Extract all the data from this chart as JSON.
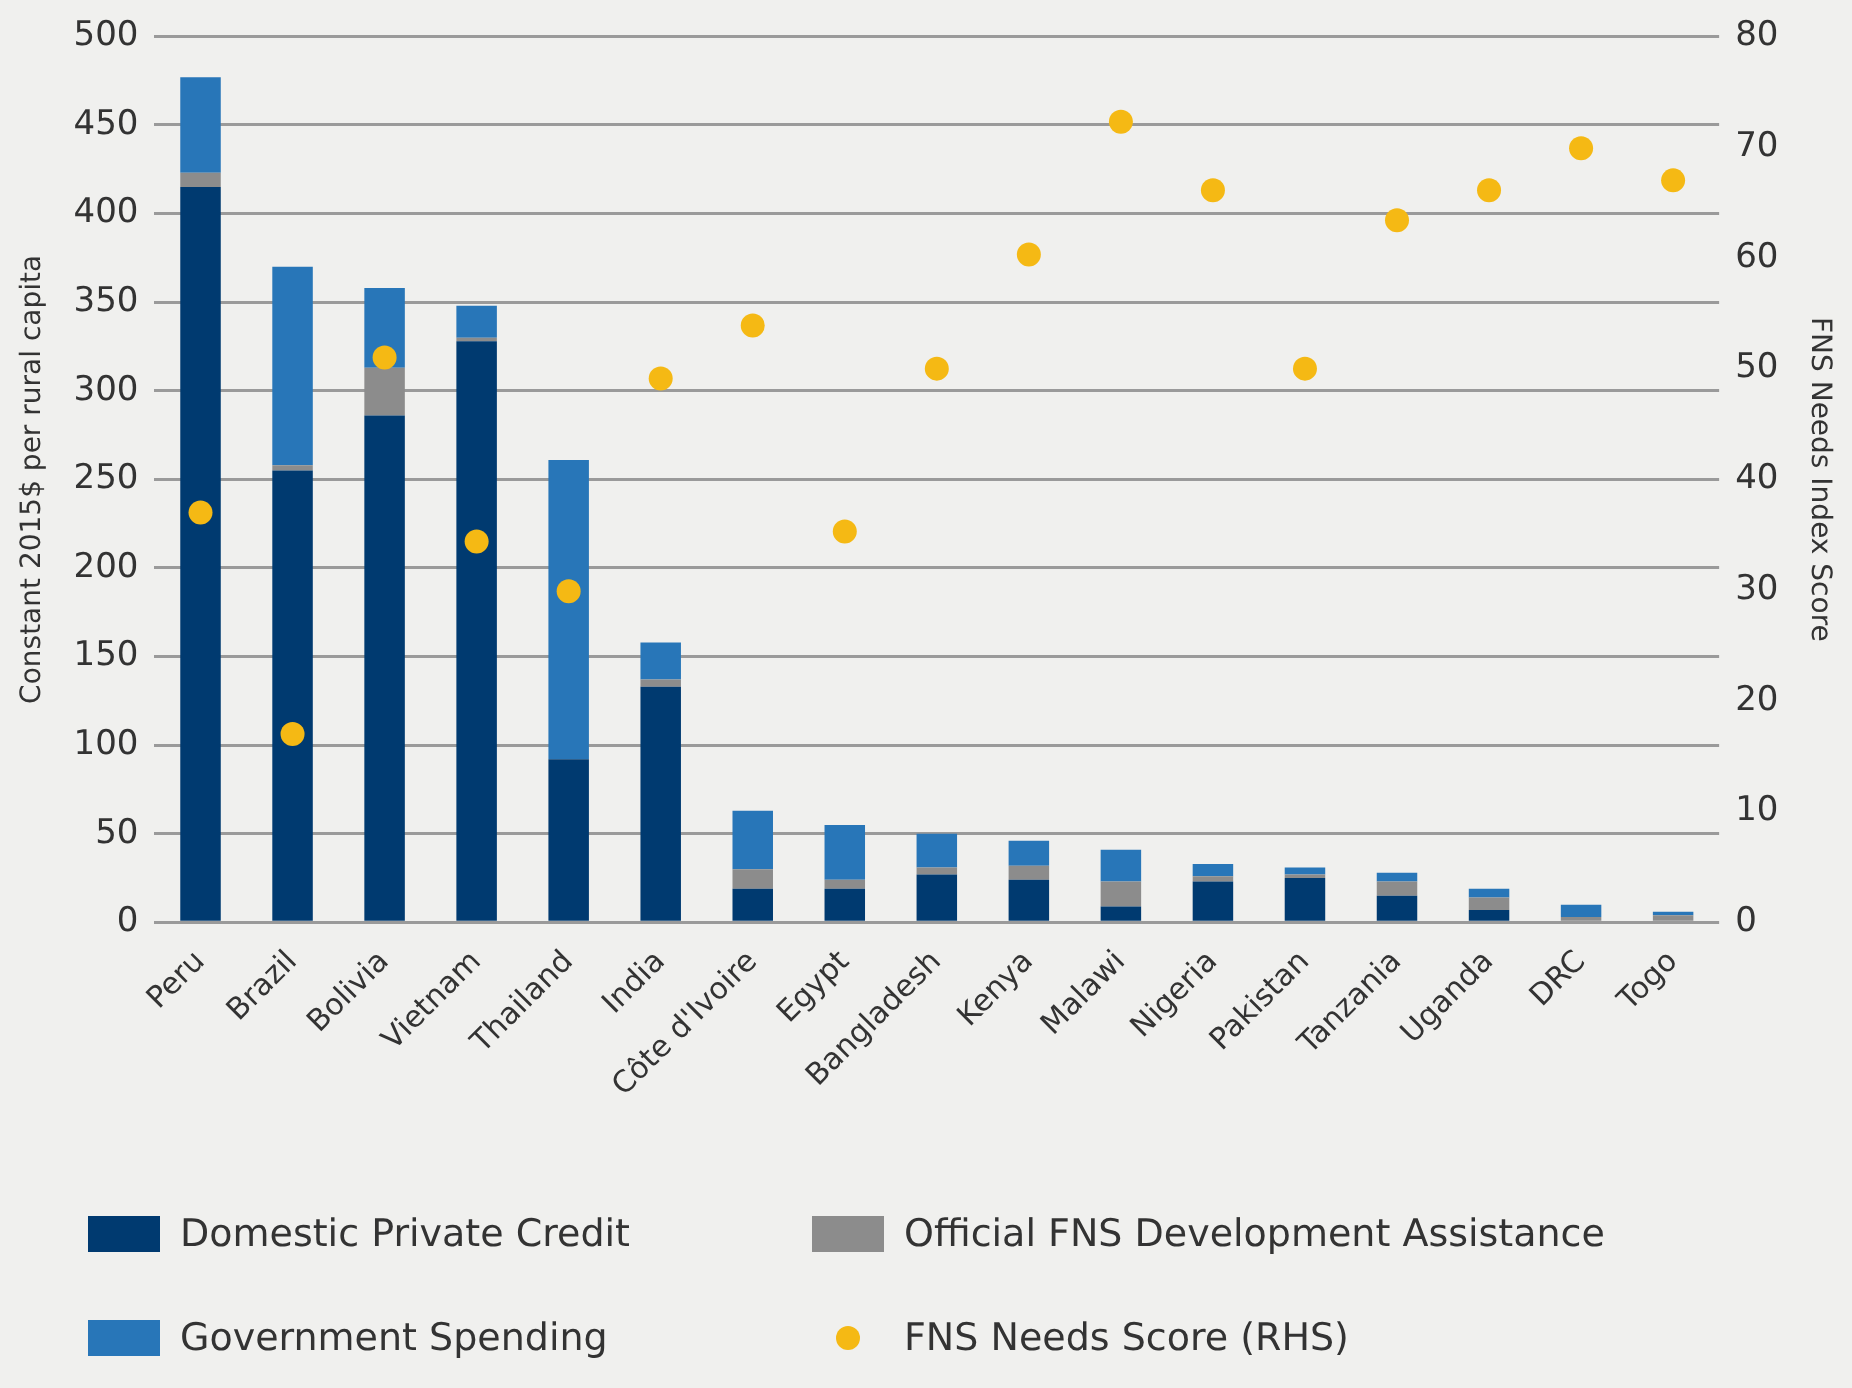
{
  "chart_data": {
    "type": "bar",
    "stacked": true,
    "ylabel": "Constant 2015$ per rural capita",
    "y2label": "FNS Needs Index Score",
    "categories": [
      "Peru",
      "Brazil",
      "Bolivia",
      "Vietnam",
      "Thailand",
      "India",
      "Côte d'Ivoire",
      "Egypt",
      "Bangladesh",
      "Kenya",
      "Malawi",
      "Nigeria",
      "Pakistan",
      "Tanzania",
      "Uganda",
      "DRC",
      "Togo"
    ],
    "series": [
      {
        "name": "Domestic Private Credit",
        "color": "#003a70",
        "values": [
          415,
          255,
          286,
          328,
          92,
          133,
          19,
          19,
          27,
          24,
          9,
          23,
          25,
          15,
          7,
          0,
          0
        ]
      },
      {
        "name": "Official FNS Development Assistance",
        "color": "#8c8c8c",
        "values": [
          8,
          3,
          27,
          2,
          0,
          4,
          11,
          5,
          4,
          8,
          14,
          3,
          2,
          8,
          7,
          3,
          4
        ]
      },
      {
        "name": "Government Spending",
        "color": "#2876b8",
        "values": [
          54,
          112,
          45,
          18,
          169,
          21,
          33,
          31,
          19,
          14,
          18,
          7,
          4,
          5,
          5,
          7,
          2
        ]
      },
      {
        "name": "FNS Needs Score (RHS)",
        "type": "scatter",
        "axis": "y2",
        "color": "#f5b914",
        "marker": "circle",
        "x": [
          "Peru",
          "Brazil",
          "Bolivia",
          "Vietnam",
          "Thailand",
          "India",
          "Côte d'Ivoire",
          "Egypt",
          "Bangladesh",
          "Kenya",
          "Malawi",
          "Nigeria",
          "Pakistan",
          "Tanzania",
          "Uganda",
          "DRC",
          "Togo"
        ],
        "values": [
          37,
          17,
          51,
          34.4,
          29.9,
          49.1,
          53.9,
          35.3,
          50,
          60.3,
          72.3,
          66.1,
          50,
          63.4,
          66.1,
          69.9,
          67
        ]
      }
    ],
    "ylim": [
      0,
      500
    ],
    "yticks": [
      0,
      50,
      100,
      150,
      200,
      250,
      300,
      350,
      400,
      450,
      500
    ],
    "y2lim": [
      0,
      80
    ],
    "y2ticks": [
      0,
      10,
      20,
      30,
      40,
      50,
      60,
      70,
      80
    ],
    "grid": "y",
    "legend": "bottom"
  }
}
